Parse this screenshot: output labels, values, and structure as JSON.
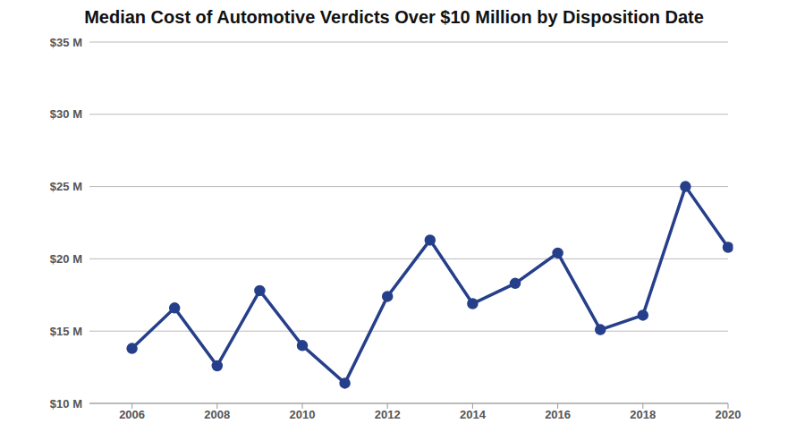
{
  "chart_data": {
    "type": "line",
    "title": "Median Cost of Automotive Verdicts Over $10 Million by Disposition Date",
    "x": [
      2006,
      2007,
      2008,
      2009,
      2010,
      2011,
      2012,
      2013,
      2014,
      2015,
      2016,
      2017,
      2018,
      2019,
      2020
    ],
    "values": [
      13.8,
      16.6,
      12.6,
      17.8,
      14.0,
      11.4,
      17.4,
      21.3,
      16.9,
      18.3,
      20.4,
      15.1,
      16.1,
      25.0,
      20.8
    ],
    "color": "#263f8a",
    "marker": "circle",
    "xlim": [
      2005,
      2020
    ],
    "xticks": [
      2006,
      2008,
      2010,
      2012,
      2014,
      2016,
      2018,
      2020
    ],
    "ylim": [
      10,
      35
    ],
    "yticks": [
      {
        "value": 10,
        "label": "$10 M"
      },
      {
        "value": 15,
        "label": "$15 M"
      },
      {
        "value": 20,
        "label": "$20 M"
      },
      {
        "value": 25,
        "label": "$25 M"
      },
      {
        "value": 30,
        "label": "$30 M"
      },
      {
        "value": 35,
        "label": "$35 M"
      }
    ],
    "grid": true
  }
}
